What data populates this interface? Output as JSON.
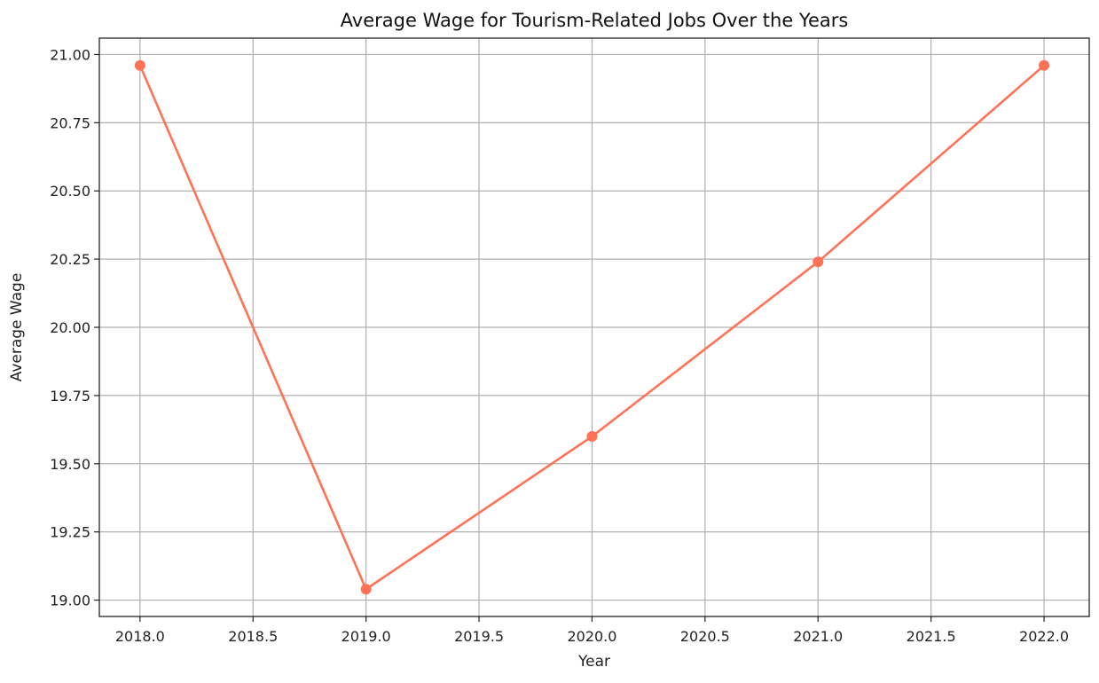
{
  "chart_data": {
    "type": "line",
    "title": "Average Wage for Tourism-Related Jobs Over the Years",
    "xlabel": "Year",
    "ylabel": "Average Wage",
    "xlim": [
      2017.82,
      2022.2
    ],
    "ylim": [
      18.94,
      21.06
    ],
    "xticks": [
      2018.0,
      2018.5,
      2019.0,
      2019.5,
      2020.0,
      2020.5,
      2021.0,
      2021.5,
      2022.0
    ],
    "xtick_labels": [
      "2018.0",
      "2018.5",
      "2019.0",
      "2019.5",
      "2020.0",
      "2020.5",
      "2021.0",
      "2021.5",
      "2022.0"
    ],
    "yticks": [
      19.0,
      19.25,
      19.5,
      19.75,
      20.0,
      20.25,
      20.5,
      20.75,
      21.0
    ],
    "ytick_labels": [
      "19.00",
      "19.25",
      "19.50",
      "19.75",
      "20.00",
      "20.25",
      "20.50",
      "20.75",
      "21.00"
    ],
    "grid": true,
    "series": [
      {
        "color": "#ff7256",
        "marker": "circle",
        "x": [
          2018,
          2019,
          2020,
          2021,
          2022
        ],
        "y": [
          20.96,
          19.04,
          19.6,
          20.24,
          20.96
        ]
      }
    ]
  }
}
